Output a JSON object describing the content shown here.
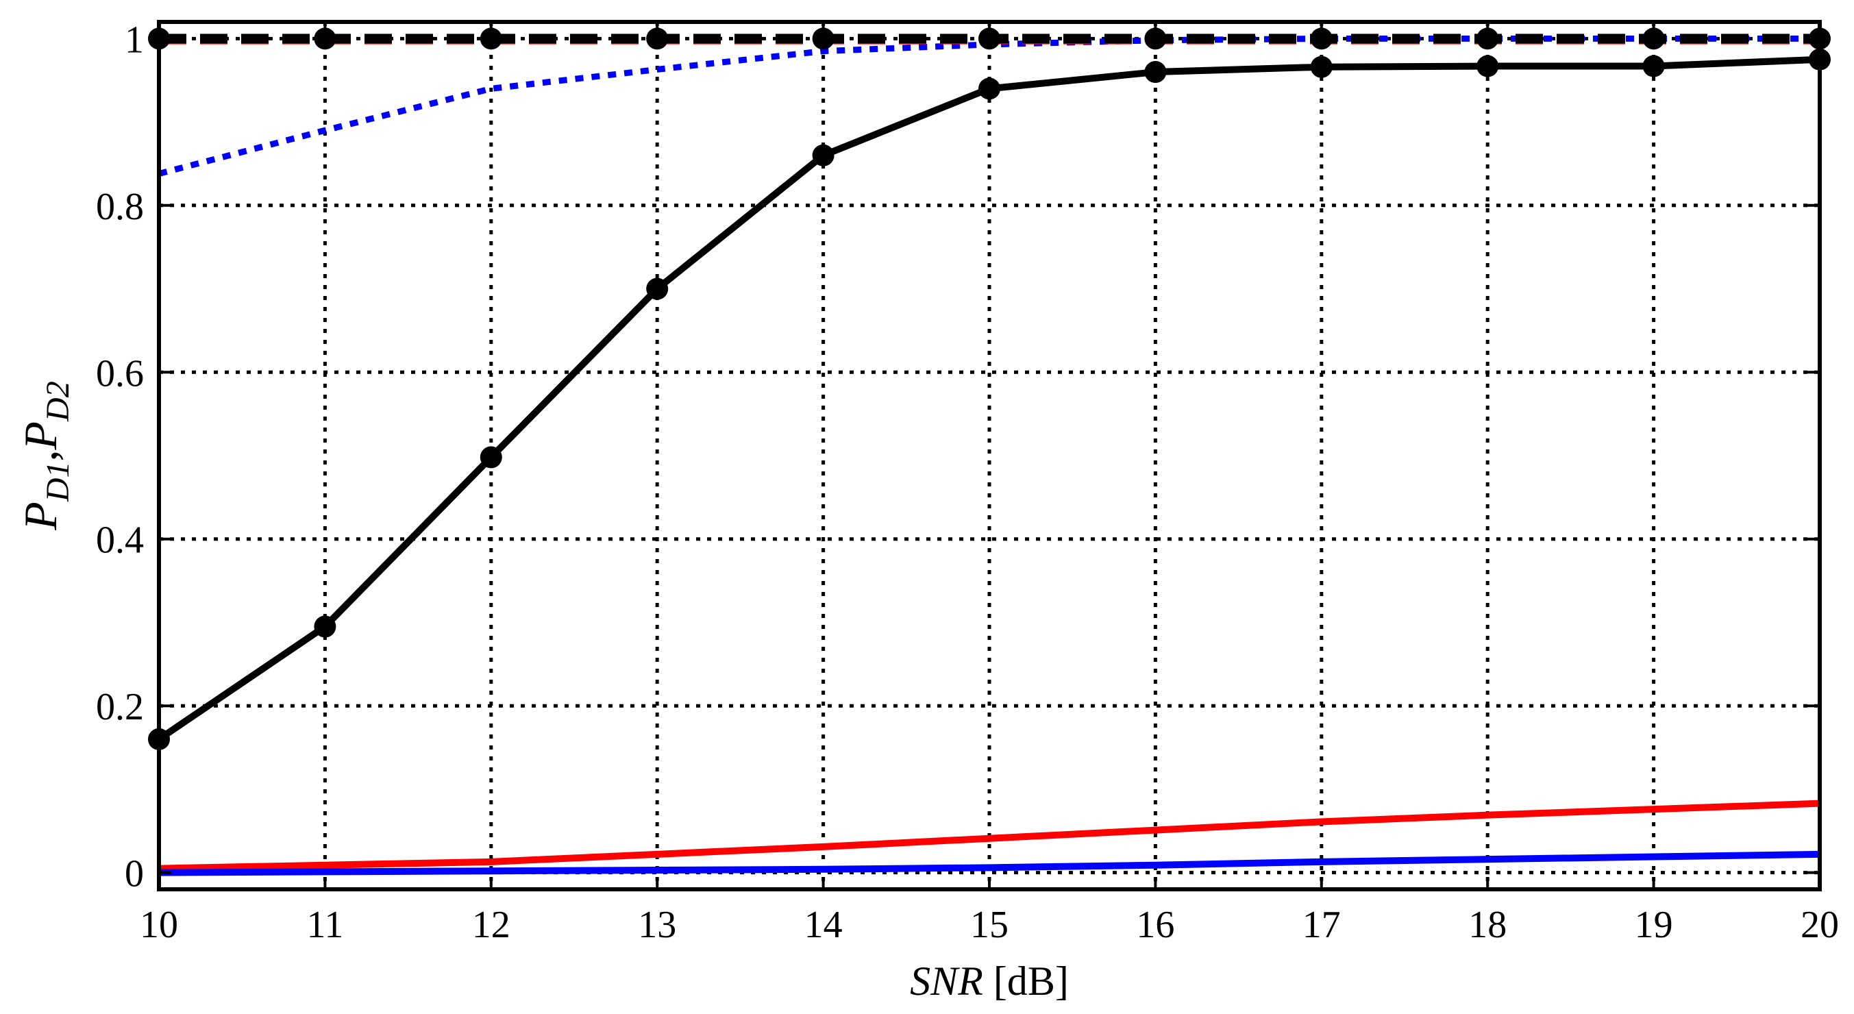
{
  "chart_data": {
    "type": "line",
    "title": "",
    "xlabel": {
      "italic": "SNR",
      "unit": " [dB]"
    },
    "ylabel": {
      "p": "P",
      "sub1": "D1",
      "comma": ",",
      "sub2": "D2"
    },
    "xlim": [
      10,
      20
    ],
    "ylim": [
      -0.02,
      1.02
    ],
    "x_ticks": [
      10,
      11,
      12,
      13,
      14,
      15,
      16,
      17,
      18,
      19,
      20
    ],
    "x_tick_labels": [
      "10",
      "11",
      "12",
      "13",
      "14",
      "15",
      "16",
      "17",
      "18",
      "19",
      "20"
    ],
    "y_ticks": [
      0,
      0.2,
      0.4,
      0.6,
      0.8,
      1
    ],
    "y_tick_labels": [
      "0",
      "0.2",
      "0.4",
      "0.6",
      "0.8",
      "1"
    ],
    "grid": true,
    "legend": null,
    "series": [
      {
        "name": "black solid with markers",
        "color": "#000000",
        "style": "solid",
        "marker": "circle",
        "x": [
          10,
          11,
          12,
          13,
          14,
          15,
          16,
          17,
          18,
          19,
          20
        ],
        "y": [
          0.16,
          0.295,
          0.498,
          0.7,
          0.86,
          0.94,
          0.96,
          0.966,
          0.967,
          0.967,
          0.975
        ]
      },
      {
        "name": "blue dotted",
        "color": "#0000ff",
        "style": "dotted",
        "marker": "none",
        "x": [
          10,
          11,
          12,
          13,
          14,
          15,
          16,
          17,
          18,
          19,
          20
        ],
        "y": [
          0.838,
          0.89,
          0.94,
          0.963,
          0.985,
          0.993,
          0.998,
          1.0,
          1.0,
          1.0,
          1.0
        ]
      },
      {
        "name": "red dashed",
        "color": "#ff0000",
        "style": "dashed",
        "marker": "none",
        "x": [
          10,
          20
        ],
        "y": [
          0.999,
          0.999
        ]
      },
      {
        "name": "black dashed with markers",
        "color": "#000000",
        "style": "dashed",
        "marker": "circle",
        "x": [
          10,
          11,
          12,
          13,
          14,
          15,
          16,
          17,
          18,
          19,
          20
        ],
        "y": [
          1.0,
          1.0,
          1.0,
          1.0,
          1.0,
          1.0,
          1.0,
          1.0,
          1.0,
          1.0,
          1.0
        ]
      },
      {
        "name": "red solid",
        "color": "#ff0000",
        "style": "solid",
        "marker": "none",
        "x": [
          10,
          11,
          12,
          13,
          14,
          15,
          16,
          17,
          18,
          19,
          20
        ],
        "y": [
          0.005,
          0.009,
          0.013,
          0.022,
          0.031,
          0.041,
          0.051,
          0.061,
          0.069,
          0.076,
          0.083
        ]
      },
      {
        "name": "blue solid",
        "color": "#0000ff",
        "style": "solid",
        "marker": "none",
        "x": [
          10,
          11,
          12,
          13,
          14,
          15,
          16,
          17,
          18,
          19,
          20
        ],
        "y": [
          0.0,
          0.001,
          0.002,
          0.003,
          0.004,
          0.006,
          0.009,
          0.013,
          0.016,
          0.019,
          0.022
        ]
      }
    ]
  }
}
